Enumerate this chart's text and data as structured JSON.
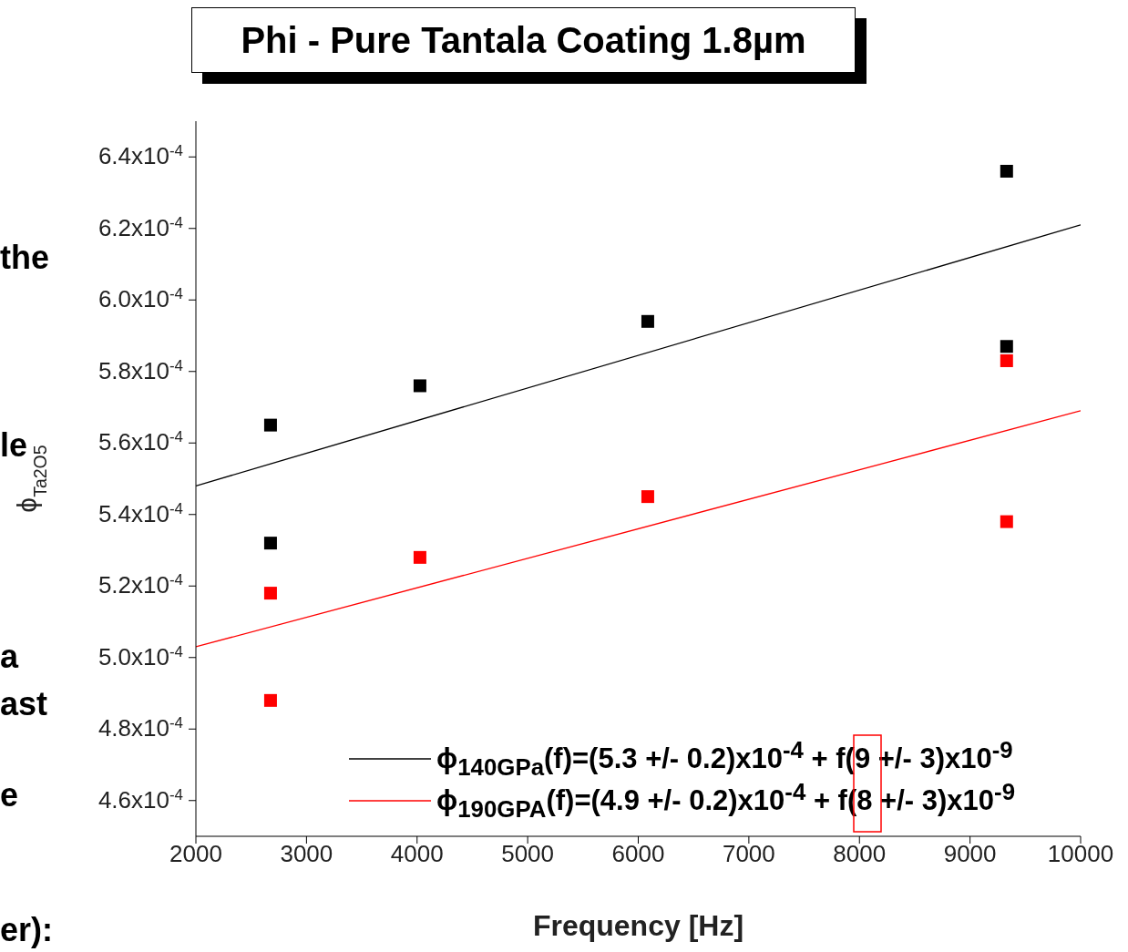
{
  "chart_data": {
    "type": "scatter",
    "title": "Phi - Pure Tantala Coating 1.8µm",
    "xlabel": "Frequency [Hz]",
    "ylabel": "ϕ$_{Ta2O5}$",
    "xlim": [
      2000,
      10000
    ],
    "xticks": [
      2000,
      3000,
      4000,
      5000,
      6000,
      7000,
      8000,
      9000,
      10000
    ],
    "ylim": [
      0.00045,
      0.00065
    ],
    "yticks": [
      {
        "value": 0.00046,
        "label": "4.6x10$^{-4}$"
      },
      {
        "value": 0.00048,
        "label": "4.8x10$^{-4}$"
      },
      {
        "value": 0.0005,
        "label": "5.0x10$^{-4}$"
      },
      {
        "value": 0.00052,
        "label": "5.2x10$^{-4}$"
      },
      {
        "value": 0.00054,
        "label": "5.4x10$^{-4}$"
      },
      {
        "value": 0.00056,
        "label": "5.6x10$^{-4}$"
      },
      {
        "value": 0.00058,
        "label": "5.8x10$^{-4}$"
      },
      {
        "value": 0.0006,
        "label": "6.0x10$^{-4}$"
      },
      {
        "value": 0.00062,
        "label": "6.2x10$^{-4}$"
      },
      {
        "value": 0.00064,
        "label": "6.4x10$^{-4}$"
      }
    ],
    "legend": "bottom right",
    "series": [
      {
        "marker": "square",
        "color": "#000000",
        "x": [
          2675,
          2675,
          4026,
          6086,
          9331,
          9331
        ],
        "values": [
          0.000565,
          0.000532,
          0.000576,
          0.000594,
          0.000636,
          0.000587
        ]
      },
      {
        "marker": "square",
        "color": "#ff0000",
        "x": [
          2675,
          2675,
          4026,
          6086,
          9331,
          9331
        ],
        "values": [
          0.000518,
          0.000488,
          0.000528,
          0.000545,
          0.000583,
          0.000538
        ]
      },
      {
        "type": "line",
        "marker": "none",
        "name": "ϕ$_{140GPa}$(f)=(5.3 +/- 0.2)x10$^{-4}$ + f(9 +/- 3)x10$^{-9}$",
        "color": "#000000",
        "x": [
          2000,
          10000
        ],
        "values": [
          0.000548,
          0.000621
        ]
      },
      {
        "type": "line",
        "marker": "none",
        "name": "ϕ$_{190GPA}$(f)=(4.9 +/- 0.2)x10$^{-4}$ + f(8 +/- 3)x10$^{-9}$",
        "color": "#ff0000",
        "x": [
          2000,
          10000
        ],
        "values": [
          0.000503,
          0.000569
        ]
      }
    ],
    "annotations": [
      "the",
      "le",
      "a",
      "ast",
      "e",
      "er):"
    ]
  }
}
